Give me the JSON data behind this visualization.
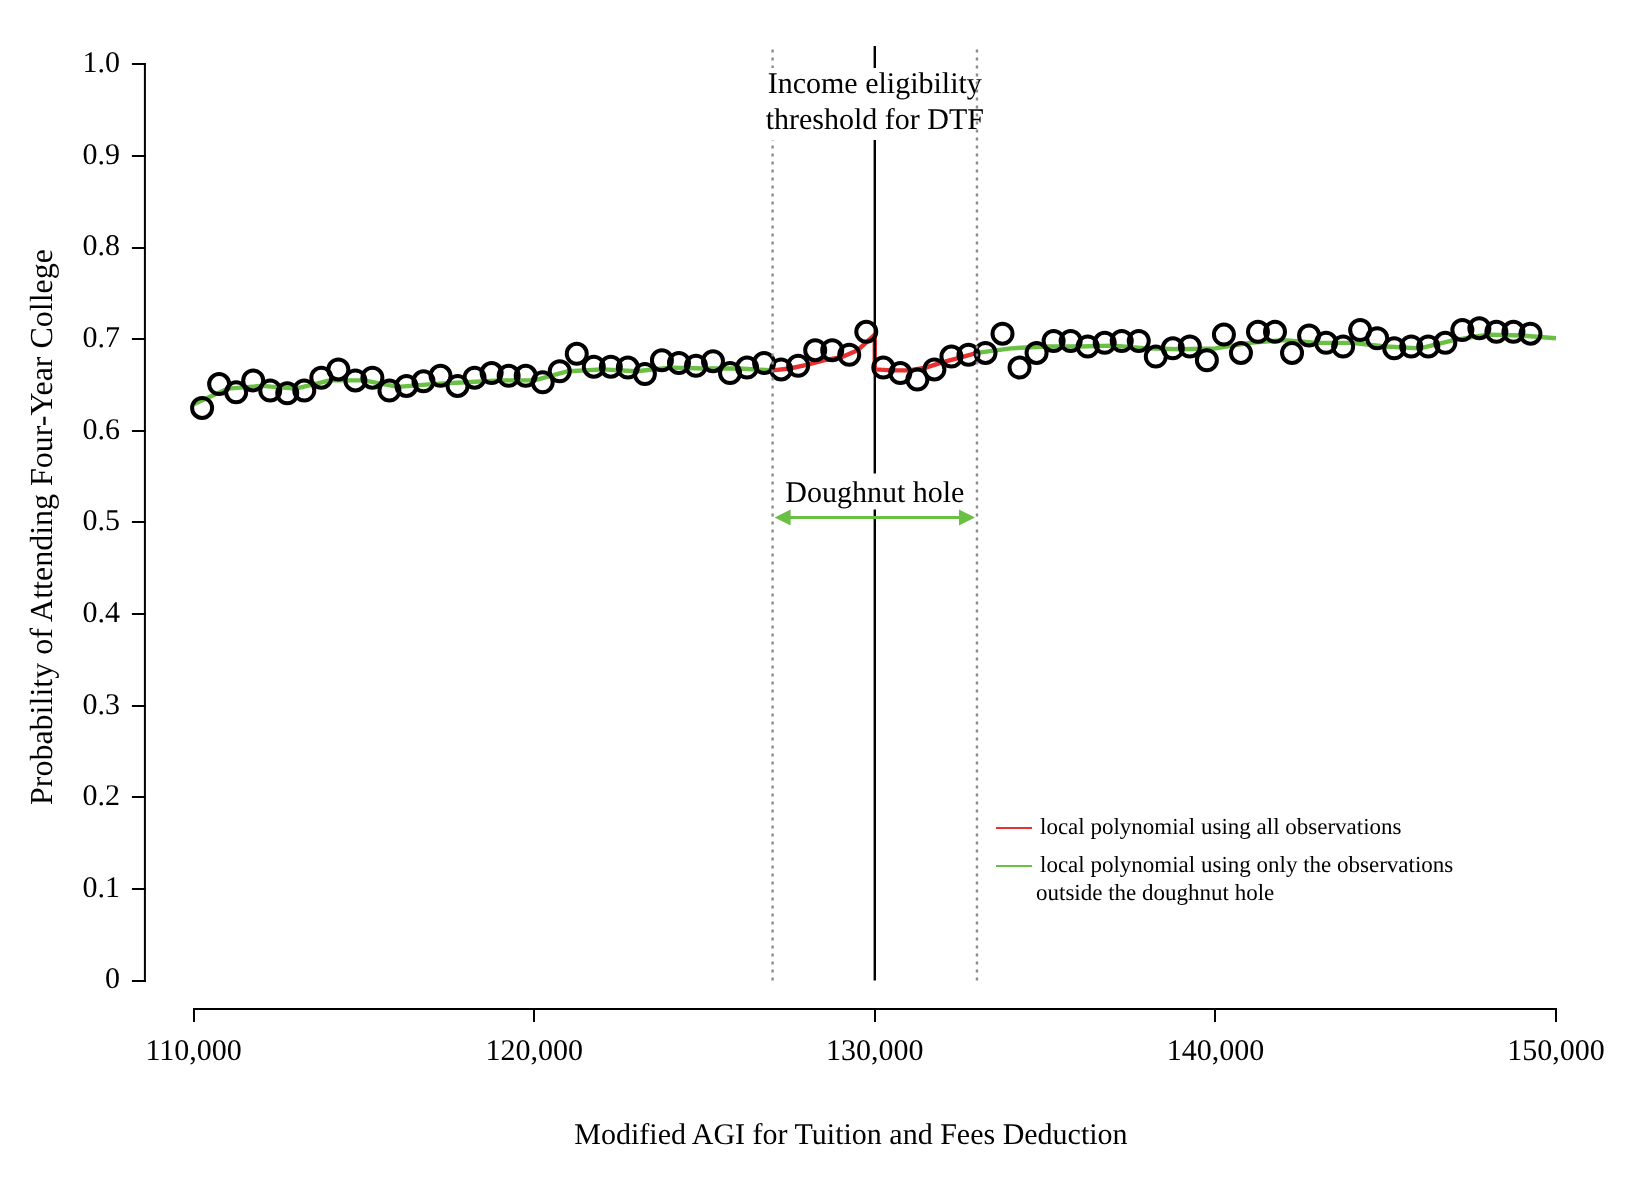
{
  "chart_data": {
    "type": "scatter",
    "xlabel": "Modified AGI for Tuition and Fees Deduction",
    "ylabel": "Probability of Attending Four-Year College",
    "xlim": [
      108600,
      150000
    ],
    "ylim": [
      -0.03,
      1.02
    ],
    "xticks": [
      {
        "value": 110000,
        "label": "110,000"
      },
      {
        "value": 120000,
        "label": "120,000"
      },
      {
        "value": 130000,
        "label": "130,000"
      },
      {
        "value": 140000,
        "label": "140,000"
      },
      {
        "value": 150000,
        "label": "150,000"
      }
    ],
    "yticks": [
      0,
      0.1,
      0.2,
      0.3,
      0.4,
      0.5,
      0.6,
      0.7,
      0.8,
      0.9,
      {
        "value": 1,
        "label": "1.0"
      }
    ],
    "grid": false,
    "legend": "bottom right",
    "series": [
      {
        "type": "scatter",
        "marker": "circle",
        "color": "#000000",
        "x": [
          110250,
          110750,
          111250,
          111750,
          112250,
          112750,
          113250,
          113750,
          114250,
          114750,
          115250,
          115750,
          116250,
          116750,
          117250,
          117750,
          118250,
          118750,
          119250,
          119750,
          120250,
          120750,
          121250,
          121750,
          122250,
          122750,
          123250,
          123750,
          124250,
          124750,
          125250,
          125750,
          126250,
          126750,
          127250,
          127750,
          128250,
          128750,
          129250,
          129750,
          130250,
          130750,
          131250,
          131750,
          132250,
          132750,
          133250,
          133750,
          134250,
          134750,
          135250,
          135750,
          136250,
          136750,
          137250,
          137750,
          138250,
          138750,
          139250,
          139750,
          140250,
          140750,
          141250,
          141750,
          142250,
          142750,
          143250,
          143750,
          144250,
          144750,
          145250,
          145750,
          146250,
          146750,
          147250,
          147750,
          148250,
          148750,
          149250
        ],
        "values": [
          0.625,
          0.651,
          0.642,
          0.655,
          0.644,
          0.641,
          0.644,
          0.658,
          0.667,
          0.655,
          0.658,
          0.644,
          0.649,
          0.654,
          0.66,
          0.649,
          0.658,
          0.663,
          0.66,
          0.66,
          0.653,
          0.665,
          0.684,
          0.67,
          0.67,
          0.669,
          0.662,
          0.677,
          0.674,
          0.671,
          0.676,
          0.663,
          0.669,
          0.674,
          0.667,
          0.671,
          0.688,
          0.688,
          0.683,
          0.708,
          0.669,
          0.663,
          0.656,
          0.667,
          0.681,
          0.683,
          0.685,
          0.706,
          0.669,
          0.685,
          0.698,
          0.698,
          0.692,
          0.696,
          0.698,
          0.698,
          0.681,
          0.69,
          0.692,
          0.677,
          0.705,
          0.685,
          0.708,
          0.708,
          0.685,
          0.704,
          0.696,
          0.692,
          0.71,
          0.701,
          0.69,
          0.692,
          0.692,
          0.696,
          0.71,
          0.712,
          0.708,
          0.708,
          0.706
        ]
      },
      {
        "type": "line",
        "marker": "none",
        "name": "local polynomial using all observations",
        "color": "#e8312f",
        "x": [
          127000,
          127500,
          128000,
          128500,
          129000,
          129500,
          130000,
          130000,
          130500,
          131000,
          131500,
          132000,
          132500,
          133000
        ],
        "values": [
          0.666,
          0.668,
          0.672,
          0.677,
          0.68,
          0.688,
          0.705,
          0.667,
          0.666,
          0.666,
          0.669,
          0.675,
          0.68,
          0.685
        ]
      },
      {
        "type": "line",
        "marker": "none",
        "name": "local polynomial using only the observations outside the doughnut hole",
        "color": "#6abf45",
        "x": [
          110000,
          111000,
          112000,
          113000,
          114000,
          115000,
          116000,
          117000,
          118000,
          119000,
          120000,
          121000,
          122000,
          123000,
          124000,
          125000,
          126000,
          127000,
          130000,
          133000,
          134000,
          135000,
          136000,
          137000,
          138000,
          139000,
          140000,
          141000,
          142000,
          143000,
          144000,
          145000,
          146000,
          147000,
          148000,
          149000,
          150000
        ],
        "values": [
          0.629,
          0.646,
          0.649,
          0.646,
          0.655,
          0.655,
          0.648,
          0.651,
          0.653,
          0.655,
          0.655,
          0.665,
          0.667,
          0.665,
          0.669,
          0.668,
          0.668,
          0.666,
          null,
          0.685,
          0.69,
          0.692,
          0.692,
          0.693,
          0.69,
          0.689,
          0.69,
          0.696,
          0.699,
          0.696,
          0.696,
          0.692,
          0.69,
          0.699,
          0.705,
          0.704,
          0.701
        ]
      }
    ],
    "ref_lines": [
      {
        "axis": "x",
        "value": 127000,
        "color": "#8c8c8c",
        "line_style": "dotted"
      },
      {
        "axis": "x",
        "value": 130000,
        "label": "Income eligibility threshold for DTF",
        "color": "#000000",
        "line_style": "solid"
      },
      {
        "axis": "x",
        "value": 133000,
        "color": "#8c8c8c",
        "line_style": "dotted"
      }
    ],
    "annotations": [
      "Doughnut hole"
    ]
  }
}
